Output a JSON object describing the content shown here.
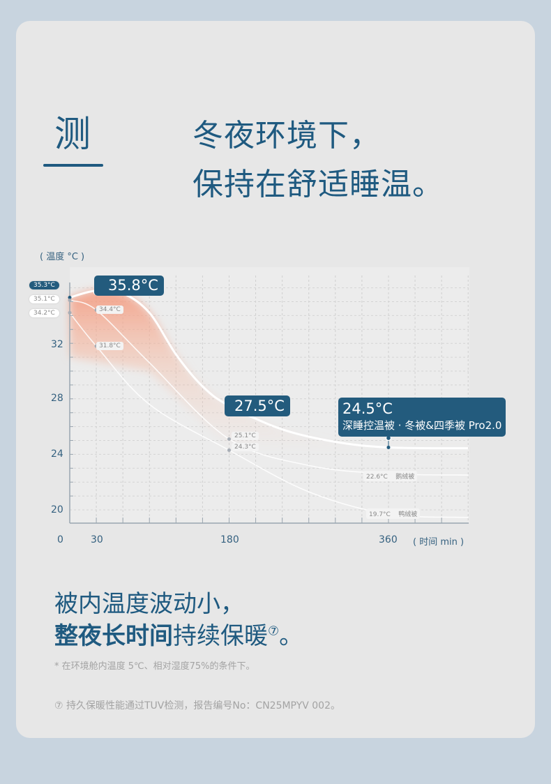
{
  "header": {
    "left_char": "测",
    "line1": "冬夜环境下，",
    "line2": "保持在舒适睡温。"
  },
  "colors": {
    "accent": "#1f5a80",
    "callout": "#235b7d",
    "glow": "#f4a07a",
    "background": "#c8d4df",
    "card": "#e7e7e7"
  },
  "chart_data": {
    "type": "line",
    "ylabel": "( 温度 °C )",
    "xlabel": "( 时间 min )",
    "xlim": [
      0,
      360
    ],
    "ylim": [
      19,
      36.5
    ],
    "x_ticks": [
      "0",
      "30",
      "180",
      "360"
    ],
    "y_ticks": [
      "32",
      "28",
      "24",
      "20"
    ],
    "grid": true,
    "series": [
      {
        "name": "深睡控温被 · 冬被&四季被 Pro2.0",
        "points": [
          [
            0,
            35.3
          ],
          [
            30,
            35.8
          ],
          [
            60,
            35.6
          ],
          [
            90,
            34.2
          ],
          [
            120,
            31.2
          ],
          [
            150,
            28.9
          ],
          [
            180,
            27.5
          ],
          [
            240,
            25.8
          ],
          [
            300,
            24.9
          ],
          [
            360,
            24.5
          ]
        ],
        "labels": {
          "start": "35.3°C",
          "peak": "35.8°C",
          "mid": "27.5°C",
          "end": "24.5°C"
        }
      },
      {
        "name": "鹅绒被",
        "points": [
          [
            0,
            35.1
          ],
          [
            30,
            34.4
          ],
          [
            90,
            30.6
          ],
          [
            180,
            25.1
          ],
          [
            270,
            23.2
          ],
          [
            360,
            22.6
          ]
        ],
        "labels": {
          "start": "35.1°C",
          "p30": "34.4°C",
          "mid": "25.1°C",
          "end": "22.6°C"
        }
      },
      {
        "name": "鸭绒被",
        "points": [
          [
            0,
            34.2
          ],
          [
            30,
            31.8
          ],
          [
            90,
            27.6
          ],
          [
            180,
            24.3
          ],
          [
            270,
            21.3
          ],
          [
            360,
            19.7
          ]
        ],
        "labels": {
          "start": "34.2°C",
          "p30": "31.8°C",
          "mid": "24.3°C",
          "end": "19.7°C"
        }
      }
    ]
  },
  "footer": {
    "line1": "被内温度波动小，",
    "line2_bold": "整夜长时间",
    "line2_rest": "持续保暖",
    "sup": "⑦",
    "period": "。",
    "note1": "* 在环境舱内温度 5℃、相对湿度75%的条件下。",
    "note2": "⑦  持久保暖性能通过TUV检测，报告编号No：CN25MPYV 002。"
  }
}
